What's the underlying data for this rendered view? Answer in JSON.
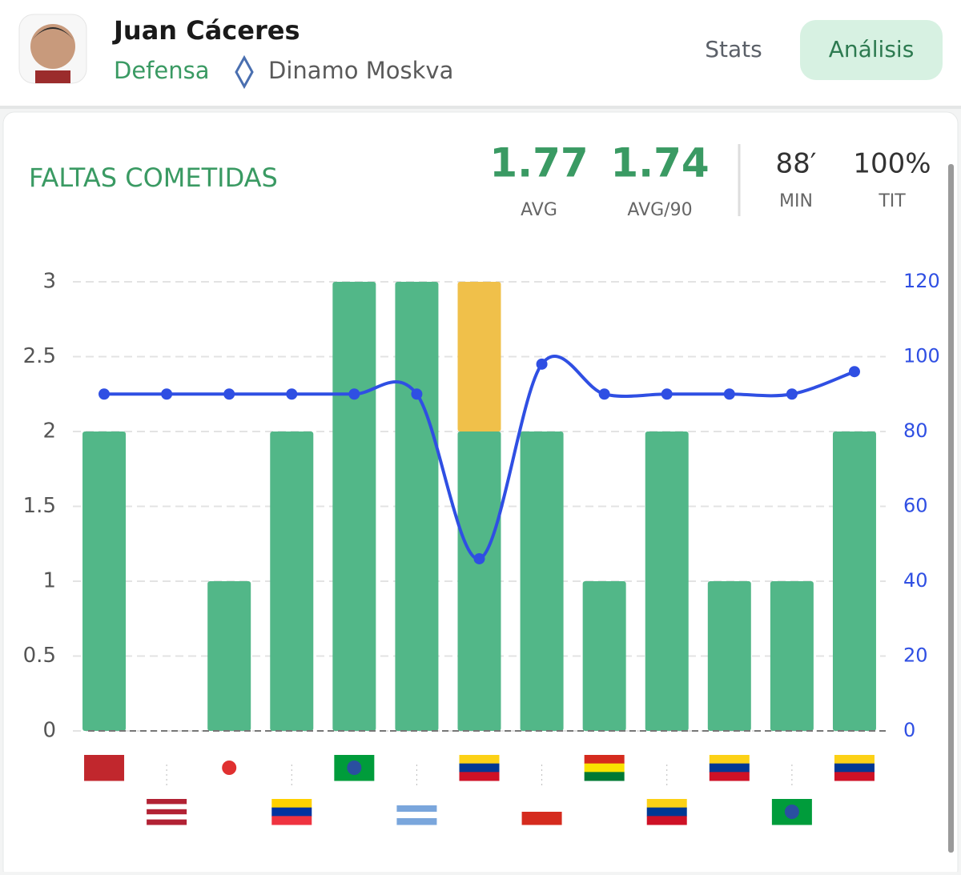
{
  "header": {
    "name": "Juan Cáceres",
    "position": "Defensa",
    "club": "Dinamo Moskva",
    "tabs": [
      "Stats",
      "Análisis"
    ]
  },
  "stats": [
    {
      "value": "1.77",
      "label": "AVG"
    },
    {
      "value": "1.74",
      "label": "AVG/90"
    },
    {
      "value": "88′",
      "label": "MIN"
    },
    {
      "value": "100%",
      "label": "TIT"
    }
  ],
  "chart_data": {
    "type": "bar",
    "title": "FALTAS COMETIDAS",
    "categories": [
      null,
      null,
      null,
      null,
      null,
      null,
      null,
      null,
      null,
      null,
      null,
      null,
      null
    ],
    "series": [
      {
        "color": "#52b788",
        "values": [
          2,
          0,
          1,
          2,
          3,
          3,
          2,
          2,
          1,
          2,
          1,
          1,
          2
        ]
      },
      {
        "color": "#f0c04a",
        "values": [
          null,
          null,
          null,
          null,
          null,
          null,
          1,
          null,
          null,
          null,
          null,
          null,
          null
        ]
      },
      {
        "type": "line",
        "axis": "y2",
        "color": "#2f4fe3",
        "values": [
          90,
          90,
          90,
          90,
          90,
          90,
          46,
          98,
          90,
          90,
          90,
          90,
          96
        ]
      }
    ],
    "ylim": [
      0,
      3
    ],
    "yticks": [
      0,
      0.5,
      1,
      1.5,
      2,
      2.5,
      3
    ],
    "y2lim": [
      0,
      120
    ],
    "y2ticks": [
      0,
      20,
      40,
      60,
      80,
      100,
      120
    ],
    "grid": true
  }
}
